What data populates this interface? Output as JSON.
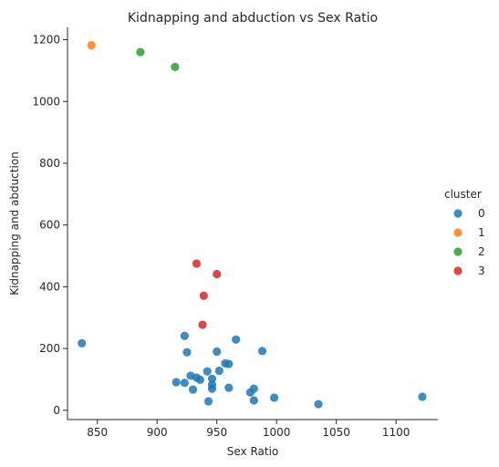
{
  "chart_data": {
    "type": "scatter",
    "title": "Kidnapping and abduction vs Sex Ratio",
    "xlabel": "Sex Ratio",
    "ylabel": "Kidnapping and abduction",
    "xlim": [
      825,
      1135
    ],
    "ylim": [
      -30,
      1240
    ],
    "xticks": [
      850,
      900,
      950,
      1000,
      1050,
      1100
    ],
    "yticks": [
      0,
      200,
      400,
      600,
      800,
      1000,
      1200
    ],
    "grid": false,
    "legend": {
      "title": "cluster",
      "placement": "right"
    },
    "series": [
      {
        "name": "0",
        "color": "#1f77b4",
        "points": [
          [
            837,
            217
          ],
          [
            923,
            241
          ],
          [
            925,
            188
          ],
          [
            966,
            229
          ],
          [
            988,
            192
          ],
          [
            950,
            190
          ],
          [
            957,
            152
          ],
          [
            960,
            150
          ],
          [
            916,
            91
          ],
          [
            923,
            89
          ],
          [
            928,
            112
          ],
          [
            930,
            67
          ],
          [
            933,
            106
          ],
          [
            936,
            99
          ],
          [
            942,
            126
          ],
          [
            946,
            102
          ],
          [
            946,
            83
          ],
          [
            946,
            70
          ],
          [
            952,
            128
          ],
          [
            960,
            73
          ],
          [
            943,
            29
          ],
          [
            978,
            58
          ],
          [
            981,
            70
          ],
          [
            981,
            32
          ],
          [
            998,
            41
          ],
          [
            1035,
            20
          ],
          [
            1122,
            44
          ]
        ]
      },
      {
        "name": "1",
        "color": "#ff7f0e",
        "points": [
          [
            845,
            1182
          ]
        ]
      },
      {
        "name": "2",
        "color": "#2ca02c",
        "points": [
          [
            886,
            1160
          ],
          [
            915,
            1112
          ]
        ]
      },
      {
        "name": "3",
        "color": "#d62728",
        "points": [
          [
            933,
            475
          ],
          [
            950,
            441
          ],
          [
            939,
            371
          ],
          [
            938,
            277
          ]
        ]
      }
    ]
  }
}
